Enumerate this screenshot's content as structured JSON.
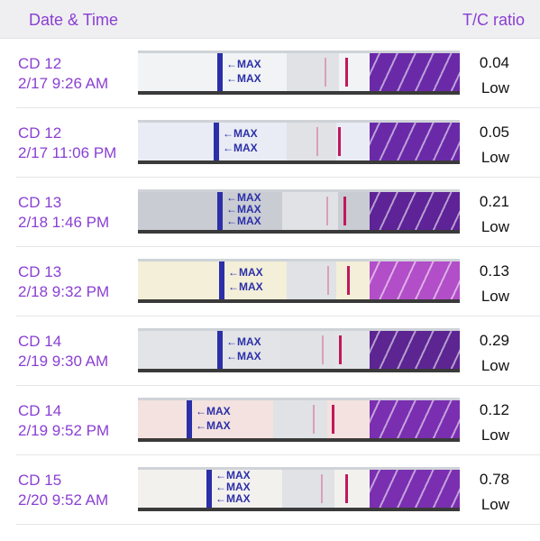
{
  "header": {
    "date_label": "Date & Time",
    "ratio_label": "T/C ratio"
  },
  "rows": [
    {
      "cycle_day": "CD 12",
      "datetime": "2/17 9:26 AM",
      "ratio": "0.04",
      "level": "Low",
      "strip_max": [
        "MAX",
        "MAX"
      ]
    },
    {
      "cycle_day": "CD 12",
      "datetime": "2/17 11:06 PM",
      "ratio": "0.05",
      "level": "Low",
      "strip_max": [
        "MAX",
        "MAX"
      ]
    },
    {
      "cycle_day": "CD 13",
      "datetime": "2/18 1:46 PM",
      "ratio": "0.21",
      "level": "Low",
      "strip_max": [
        "MAX",
        "MAX",
        "MAX"
      ]
    },
    {
      "cycle_day": "CD 13",
      "datetime": "2/18 9:32 PM",
      "ratio": "0.13",
      "level": "Low",
      "strip_max": [
        "MAX",
        "MAX"
      ]
    },
    {
      "cycle_day": "CD 14",
      "datetime": "2/19 9:30 AM",
      "ratio": "0.29",
      "level": "Low",
      "strip_max": [
        "MAX",
        "MAX"
      ]
    },
    {
      "cycle_day": "CD 14",
      "datetime": "2/19 9:52 PM",
      "ratio": "0.12",
      "level": "Low",
      "strip_max": [
        "MAX",
        "MAX"
      ]
    },
    {
      "cycle_day": "CD 15",
      "datetime": "2/20 9:52 AM",
      "ratio": "0.78",
      "level": "Low",
      "strip_max": [
        "MAX",
        "MAX",
        "MAX"
      ]
    }
  ],
  "colors": {
    "accent": "#8a3fd3",
    "strip_ink": "#2b2fa8",
    "control_line": "#c2185b",
    "strip_purple": "#6a2aa8"
  }
}
